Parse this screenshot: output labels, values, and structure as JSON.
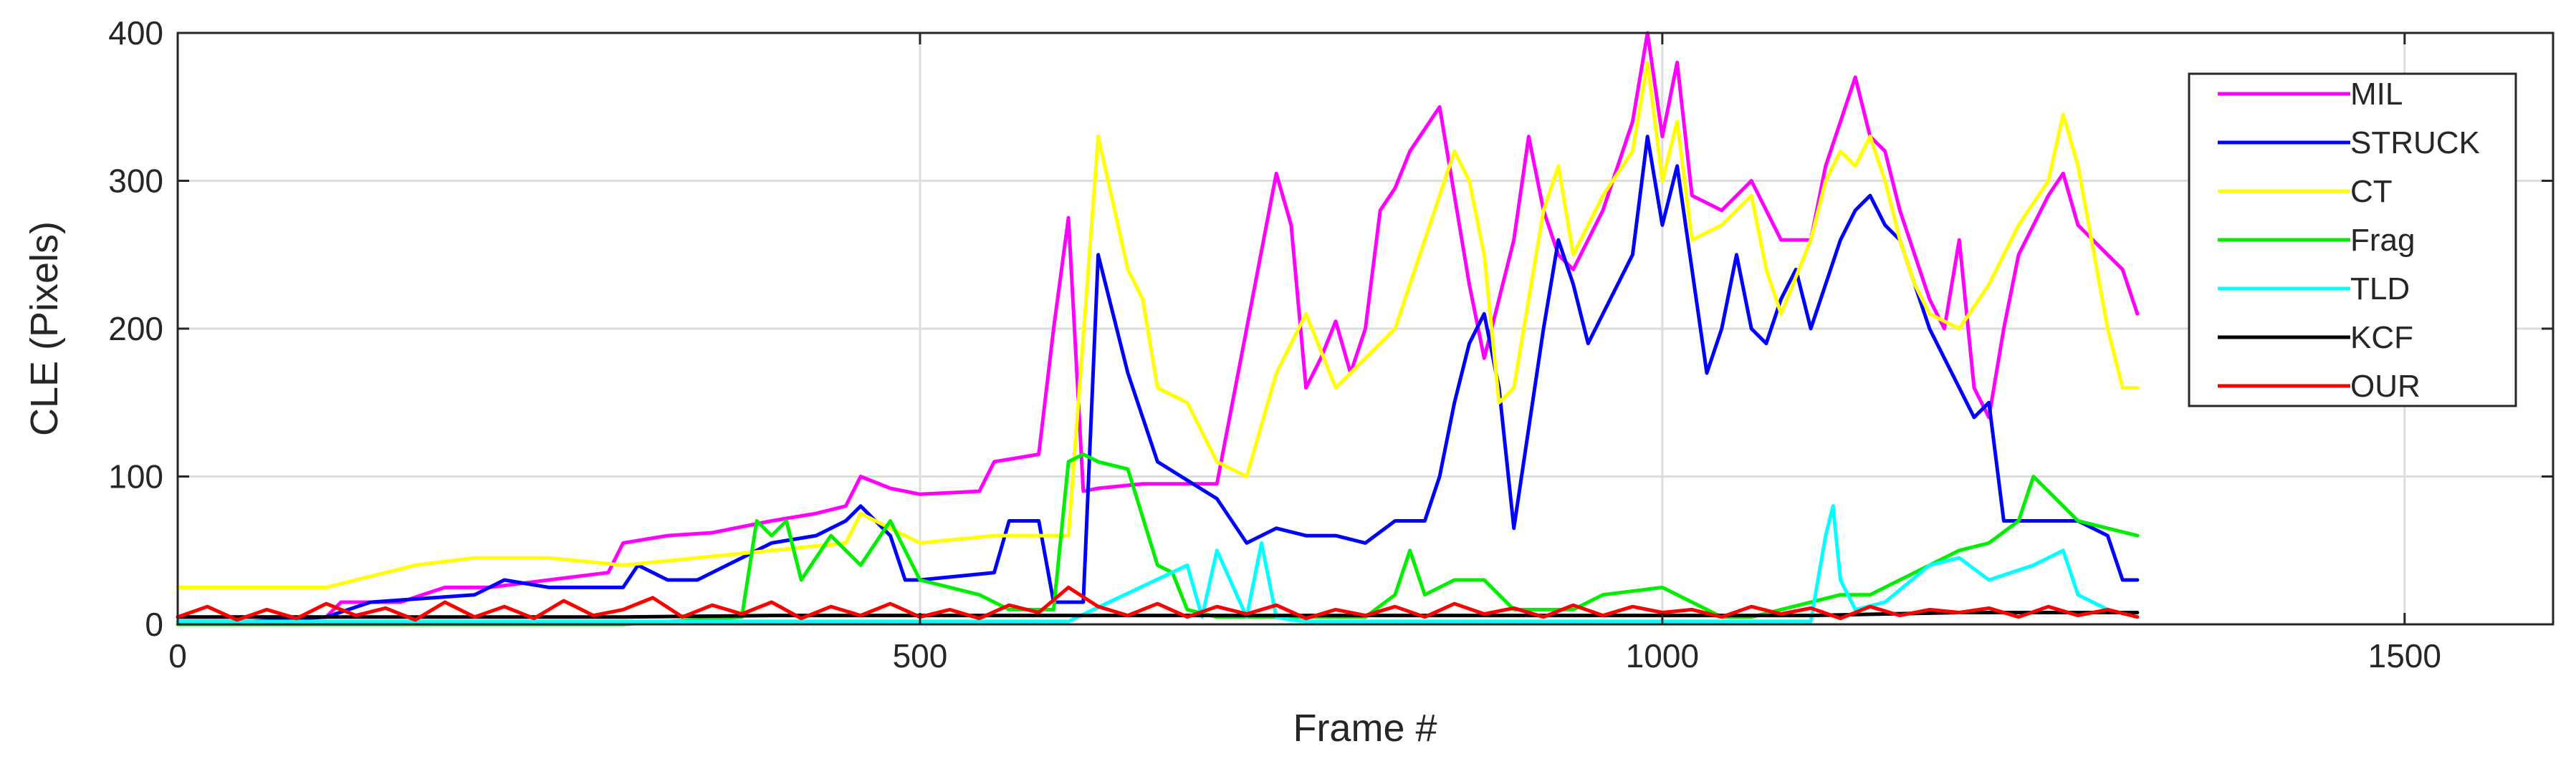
{
  "chart_data": {
    "type": "line",
    "title": "",
    "xlabel": "Frame #",
    "ylabel": "CLE (Pixels)",
    "xlim": [
      0,
      1600
    ],
    "ylim": [
      0,
      400
    ],
    "xticks": [
      0,
      500,
      1000,
      1500
    ],
    "yticks": [
      0,
      100,
      200,
      300,
      400
    ],
    "grid": true,
    "legend_position": "top-right",
    "series": [
      {
        "name": "MIL",
        "color": "#ff00ff",
        "x": [
          0,
          50,
          100,
          110,
          150,
          180,
          200,
          210,
          250,
          290,
          300,
          330,
          360,
          400,
          430,
          450,
          460,
          480,
          500,
          540,
          550,
          580,
          590,
          600,
          610,
          620,
          650,
          700,
          720,
          740,
          750,
          760,
          770,
          780,
          790,
          800,
          810,
          820,
          830,
          850,
          860,
          870,
          880,
          900,
          910,
          920,
          930,
          940,
          960,
          980,
          990,
          1000,
          1010,
          1020,
          1040,
          1060,
          1070,
          1080,
          1100,
          1110,
          1120,
          1130,
          1140,
          1150,
          1160,
          1170,
          1180,
          1190,
          1200,
          1210,
          1220,
          1230,
          1240,
          1260,
          1270,
          1280,
          1300,
          1310,
          1320
        ],
        "values": [
          5,
          5,
          5,
          15,
          15,
          25,
          25,
          25,
          30,
          35,
          55,
          60,
          62,
          70,
          75,
          80,
          100,
          92,
          88,
          90,
          110,
          115,
          200,
          275,
          90,
          92,
          95,
          95,
          200,
          305,
          270,
          160,
          180,
          205,
          170,
          200,
          280,
          295,
          320,
          350,
          290,
          230,
          180,
          260,
          330,
          280,
          250,
          240,
          280,
          340,
          400,
          330,
          380,
          290,
          280,
          300,
          280,
          260,
          260,
          310,
          340,
          370,
          330,
          320,
          280,
          250,
          220,
          200,
          260,
          160,
          140,
          200,
          250,
          290,
          305,
          270,
          250,
          240,
          210
        ]
      },
      {
        "name": "STRUCK",
        "color": "#0000ff",
        "x": [
          0,
          50,
          100,
          130,
          200,
          220,
          250,
          300,
          310,
          330,
          350,
          380,
          400,
          430,
          450,
          460,
          480,
          490,
          500,
          550,
          560,
          580,
          590,
          600,
          610,
          620,
          640,
          660,
          700,
          720,
          740,
          760,
          780,
          800,
          820,
          840,
          850,
          860,
          870,
          880,
          890,
          900,
          920,
          930,
          940,
          950,
          960,
          980,
          990,
          1000,
          1010,
          1020,
          1030,
          1040,
          1050,
          1060,
          1070,
          1080,
          1090,
          1100,
          1110,
          1120,
          1130,
          1140,
          1150,
          1160,
          1170,
          1180,
          1190,
          1200,
          1210,
          1220,
          1230,
          1260,
          1280,
          1300,
          1310,
          1320
        ],
        "values": [
          2,
          2,
          5,
          15,
          20,
          30,
          25,
          25,
          40,
          30,
          30,
          45,
          55,
          60,
          70,
          80,
          60,
          30,
          30,
          35,
          70,
          70,
          15,
          15,
          15,
          250,
          170,
          110,
          85,
          55,
          65,
          60,
          60,
          55,
          70,
          70,
          100,
          150,
          190,
          210,
          160,
          65,
          200,
          260,
          230,
          190,
          210,
          250,
          330,
          270,
          310,
          240,
          170,
          200,
          250,
          200,
          190,
          220,
          240,
          200,
          230,
          260,
          280,
          290,
          270,
          260,
          230,
          200,
          180,
          160,
          140,
          150,
          70,
          70,
          70,
          60,
          30,
          30
        ]
      },
      {
        "name": "CT",
        "color": "#ffff00",
        "x": [
          0,
          50,
          100,
          120,
          140,
          160,
          200,
          250,
          300,
          350,
          400,
          450,
          460,
          480,
          500,
          550,
          600,
          620,
          640,
          650,
          660,
          680,
          700,
          720,
          740,
          760,
          780,
          800,
          820,
          840,
          860,
          870,
          880,
          890,
          900,
          920,
          930,
          940,
          960,
          980,
          990,
          1000,
          1010,
          1020,
          1040,
          1060,
          1070,
          1080,
          1100,
          1110,
          1120,
          1130,
          1140,
          1150,
          1160,
          1170,
          1180,
          1200,
          1220,
          1240,
          1260,
          1270,
          1280,
          1300,
          1310,
          1320
        ],
        "values": [
          25,
          25,
          25,
          30,
          35,
          40,
          45,
          45,
          40,
          45,
          50,
          55,
          75,
          65,
          55,
          60,
          60,
          330,
          240,
          220,
          160,
          150,
          110,
          100,
          170,
          210,
          160,
          180,
          200,
          260,
          320,
          300,
          250,
          150,
          160,
          280,
          310,
          250,
          290,
          320,
          380,
          300,
          340,
          260,
          270,
          290,
          240,
          210,
          260,
          300,
          320,
          310,
          330,
          300,
          260,
          230,
          210,
          200,
          230,
          270,
          300,
          345,
          310,
          200,
          160,
          160
        ]
      },
      {
        "name": "Frag",
        "color": "#00ee00",
        "x": [
          0,
          100,
          200,
          300,
          380,
          390,
          400,
          410,
          420,
          440,
          460,
          480,
          500,
          540,
          560,
          570,
          590,
          600,
          610,
          620,
          640,
          660,
          670,
          680,
          700,
          750,
          800,
          820,
          830,
          840,
          860,
          880,
          900,
          920,
          940,
          960,
          1000,
          1020,
          1040,
          1060,
          1080,
          1100,
          1120,
          1140,
          1160,
          1180,
          1200,
          1220,
          1240,
          1250,
          1260,
          1270,
          1280,
          1300,
          1320
        ],
        "values": [
          0,
          0,
          0,
          0,
          5,
          70,
          60,
          70,
          30,
          60,
          40,
          70,
          30,
          20,
          10,
          10,
          10,
          110,
          115,
          110,
          105,
          40,
          35,
          10,
          5,
          5,
          5,
          20,
          50,
          20,
          30,
          30,
          10,
          10,
          10,
          20,
          25,
          15,
          5,
          5,
          10,
          15,
          20,
          20,
          30,
          40,
          50,
          55,
          70,
          100,
          90,
          80,
          70,
          65,
          60
        ]
      },
      {
        "name": "TLD",
        "color": "#00ffff",
        "x": [
          0,
          100,
          200,
          300,
          400,
          500,
          600,
          680,
          690,
          700,
          720,
          730,
          740,
          750,
          760,
          800,
          900,
          1000,
          1100,
          1110,
          1115,
          1120,
          1130,
          1150,
          1180,
          1200,
          1220,
          1250,
          1270,
          1280,
          1300,
          1320
        ],
        "values": [
          2,
          2,
          2,
          2,
          2,
          2,
          2,
          40,
          5,
          50,
          5,
          55,
          5,
          3,
          2,
          2,
          2,
          2,
          2,
          60,
          80,
          30,
          10,
          15,
          40,
          45,
          30,
          40,
          50,
          20,
          10,
          5
        ]
      },
      {
        "name": "KCF",
        "color": "#000000",
        "x": [
          0,
          100,
          200,
          300,
          400,
          500,
          600,
          700,
          800,
          900,
          1000,
          1100,
          1200,
          1300,
          1320
        ],
        "values": [
          5,
          5,
          5,
          5,
          6,
          6,
          6,
          6,
          6,
          6,
          6,
          6,
          8,
          8,
          8
        ]
      },
      {
        "name": "OUR",
        "color": "#ff0000",
        "x": [
          0,
          20,
          40,
          60,
          80,
          100,
          120,
          140,
          160,
          180,
          200,
          220,
          240,
          260,
          280,
          300,
          320,
          340,
          360,
          380,
          400,
          420,
          440,
          460,
          480,
          500,
          520,
          540,
          560,
          580,
          600,
          620,
          640,
          660,
          680,
          700,
          720,
          740,
          760,
          780,
          800,
          820,
          840,
          860,
          880,
          900,
          920,
          940,
          960,
          980,
          1000,
          1020,
          1040,
          1060,
          1080,
          1100,
          1120,
          1140,
          1160,
          1180,
          1200,
          1220,
          1240,
          1260,
          1280,
          1300,
          1320
        ],
        "values": [
          5,
          12,
          3,
          10,
          4,
          14,
          6,
          11,
          3,
          15,
          5,
          12,
          4,
          16,
          6,
          10,
          18,
          5,
          13,
          7,
          15,
          4,
          12,
          6,
          14,
          5,
          10,
          4,
          13,
          8,
          25,
          12,
          6,
          14,
          5,
          12,
          7,
          13,
          4,
          10,
          6,
          12,
          5,
          14,
          7,
          11,
          5,
          13,
          6,
          12,
          8,
          10,
          5,
          12,
          7,
          11,
          4,
          12,
          6,
          10,
          8,
          11,
          5,
          12,
          6,
          10,
          5
        ]
      }
    ]
  }
}
